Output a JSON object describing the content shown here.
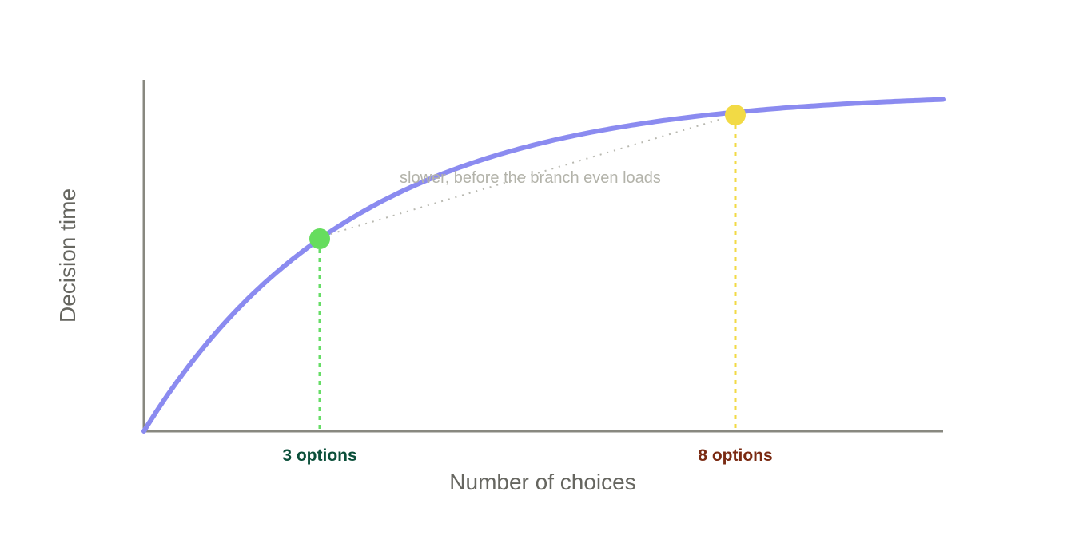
{
  "diagram": {
    "y_axis_label": "Decision time",
    "x_axis_label": "Number of choices",
    "annotation": "slower, before the branch even loads",
    "points": [
      {
        "label": "3 options"
      },
      {
        "label": "8 options"
      }
    ]
  }
}
